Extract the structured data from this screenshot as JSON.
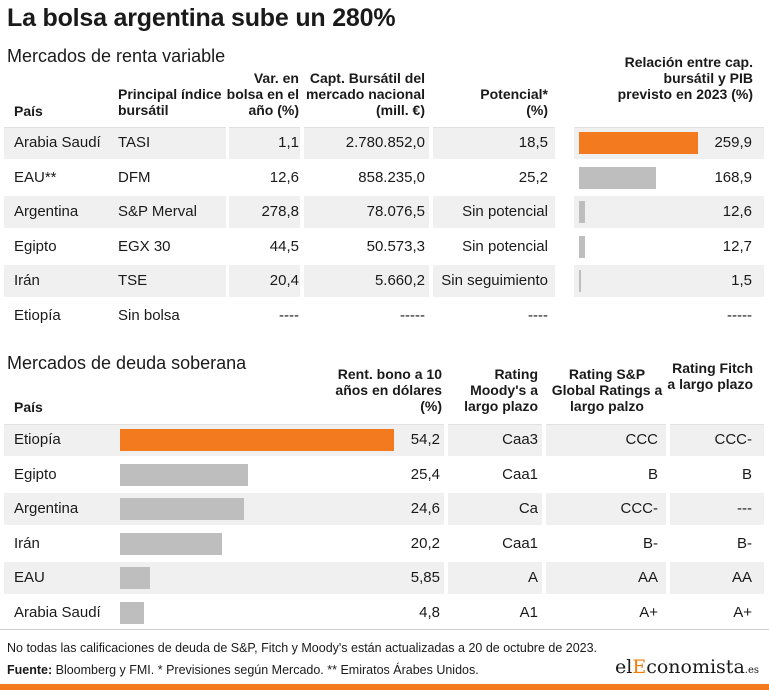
{
  "title": "La bolsa argentina sube un 280%",
  "colors": {
    "highlight": "#f47a20",
    "bar": "#bebebe",
    "row_alt": "#f0f0f0"
  },
  "equity": {
    "subtitle": "Mercados de renta variable",
    "headers": {
      "country": "País",
      "index": "Principal índice bursátil",
      "var": "Var. en bolsa en el año (%)",
      "cap": "Capt. Bursátil del mercado nacional (mill. €)",
      "potential": "Potencial* (%)",
      "ratio": "Relación entre cap. bursátil y PIB previsto en 2023 (%)"
    },
    "rows": [
      {
        "country": "Arabia Saudí",
        "index": "TASI",
        "var": "1,1",
        "cap": "2.780.852,0",
        "potential": "18,5",
        "ratio_label": "259,9"
      },
      {
        "country": "EAU**",
        "index": "DFM",
        "var": "12,6",
        "cap": "858.235,0",
        "potential": "25,2",
        "ratio_label": "168,9"
      },
      {
        "country": "Argentina",
        "index": "S&P Merval",
        "var": "278,8",
        "cap": "78.076,5",
        "potential": "Sin potencial",
        "ratio_label": "12,6"
      },
      {
        "country": "Egipto",
        "index": "EGX 30",
        "var": "44,5",
        "cap": "50.573,3",
        "potential": "Sin potencial",
        "ratio_label": "12,7"
      },
      {
        "country": "Irán",
        "index": "TSE",
        "var": "20,4",
        "cap": "5.660,2",
        "potential": "Sin seguimiento",
        "ratio_label": "1,5"
      },
      {
        "country": "Etiopía",
        "index": "Sin bolsa",
        "var": "----",
        "cap": "-----",
        "potential": "----",
        "ratio_label": "-----"
      }
    ]
  },
  "debt": {
    "subtitle": "Mercados de deuda soberana",
    "headers": {
      "country": "País",
      "yield": "Rent. bono a 10 años en dólares (%)",
      "moodys": "Rating Moody's a largo plazo",
      "sp": "Rating S&P Global Ratings a largo palzo",
      "fitch": "Rating Fitch a largo plazo"
    },
    "rows": [
      {
        "country": "Etiopía",
        "yield_label": "54,2",
        "moodys": "Caa3",
        "sp": "CCC",
        "fitch": "CCC-"
      },
      {
        "country": "Egipto",
        "yield_label": "25,4",
        "moodys": "Caa1",
        "sp": "B",
        "fitch": "B"
      },
      {
        "country": "Argentina",
        "yield_label": "24,6",
        "moodys": "Ca",
        "sp": "CCC-",
        "fitch": "---"
      },
      {
        "country": "Irán",
        "yield_label": "20,2",
        "moodys": "Caa1",
        "sp": "B-",
        "fitch": "B-"
      },
      {
        "country": "EAU",
        "yield_label": "5,85",
        "moodys": "A",
        "sp": "AA",
        "fitch": "AA"
      },
      {
        "country": "Arabia Saudí",
        "yield_label": "4,8",
        "moodys": "A1",
        "sp": "A+",
        "fitch": "A+"
      }
    ]
  },
  "footnote": "No todas las calificaciones de deuda de S&P, Fitch y Moody's están actualizadas a 20 de octubre de 2023.",
  "source_label": "Fuente:",
  "source_text": " Bloomberg y FMI. * Previsiones según Mercado. ** Emiratos Árabes Unidos.",
  "logo": {
    "prefix": "el",
    "highlight": "E",
    "rest": "conomista",
    "suffix": ".es"
  },
  "chart_data": [
    {
      "type": "bar",
      "title": "Relación entre cap. bursátil y PIB previsto en 2023 (%)",
      "categories": [
        "Arabia Saudí",
        "EAU**",
        "Argentina",
        "Egipto",
        "Irán",
        "Etiopía"
      ],
      "values": [
        259.9,
        168.9,
        12.6,
        12.7,
        1.5,
        null
      ],
      "highlight": "Arabia Saudí"
    },
    {
      "type": "bar",
      "title": "Rent. bono a 10 años en dólares (%)",
      "categories": [
        "Etiopía",
        "Egipto",
        "Argentina",
        "Irán",
        "EAU",
        "Arabia Saudí"
      ],
      "values": [
        54.2,
        25.4,
        24.6,
        20.2,
        5.85,
        4.8
      ],
      "highlight": "Etiopía"
    }
  ]
}
